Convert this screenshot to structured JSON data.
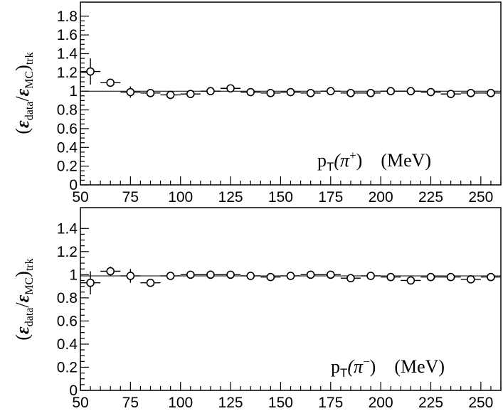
{
  "chart_data": [
    {
      "type": "scatter",
      "name": "top",
      "ylabel_parts": [
        "(",
        "ε",
        "data",
        "/",
        "ε",
        "MC",
        ")",
        "trk"
      ],
      "xlabel_parts": [
        "p",
        "T",
        "(π",
        "+",
        ")",
        "(MeV)"
      ],
      "xlim": [
        50,
        260
      ],
      "ylim": [
        0,
        1.95
      ],
      "xticks": [
        50,
        75,
        100,
        125,
        150,
        175,
        200,
        225,
        250
      ],
      "yticks": [
        0,
        0.2,
        0.4,
        0.6,
        0.8,
        1,
        1.2,
        1.4,
        1.6,
        1.8
      ],
      "ytick_labels": [
        "0",
        "0.2",
        "0.4",
        "0.6",
        "0.8",
        "1",
        "1.2",
        "1.4",
        "1.6",
        "1.8"
      ],
      "reference_line": 1.0,
      "xerr": 5,
      "x": [
        55,
        65,
        75,
        85,
        95,
        105,
        115,
        125,
        135,
        145,
        155,
        165,
        175,
        185,
        195,
        205,
        215,
        225,
        235,
        245,
        255
      ],
      "y": [
        1.21,
        1.09,
        0.99,
        0.98,
        0.96,
        0.97,
        1.0,
        1.03,
        0.99,
        0.98,
        0.99,
        0.98,
        1.0,
        0.98,
        0.98,
        1.0,
        1.0,
        0.99,
        0.97,
        0.98,
        0.98
      ],
      "yerr": [
        0.14,
        0.04,
        0.06,
        0.02,
        0.03,
        0.02,
        0.02,
        0.03,
        0.02,
        0.02,
        0.02,
        0.02,
        0.02,
        0.02,
        0.02,
        0.02,
        0.02,
        0.02,
        0.02,
        0.02,
        0.02
      ]
    },
    {
      "type": "scatter",
      "name": "bottom",
      "ylabel_parts": [
        "(",
        "ε",
        "data",
        "/",
        "ε",
        "MC",
        ")",
        "trk"
      ],
      "xlabel_parts": [
        "p",
        "T",
        "(π",
        "−",
        ")",
        "(MeV)"
      ],
      "xlim": [
        50,
        260
      ],
      "ylim": [
        0,
        1.58
      ],
      "xticks": [
        50,
        75,
        100,
        125,
        150,
        175,
        200,
        225,
        250
      ],
      "yticks": [
        0,
        0.2,
        0.4,
        0.6,
        0.8,
        1,
        1.2,
        1.4
      ],
      "ytick_labels": [
        "0",
        "0.2",
        "0.4",
        "0.6",
        "0.8",
        "1",
        "1.2",
        "1.4"
      ],
      "reference_line": 0.99,
      "xerr": 5,
      "x": [
        55,
        65,
        75,
        85,
        95,
        105,
        115,
        125,
        135,
        145,
        155,
        165,
        175,
        185,
        195,
        205,
        215,
        225,
        235,
        245,
        255
      ],
      "y": [
        0.93,
        1.03,
        0.99,
        0.93,
        0.99,
        1.0,
        1.0,
        1.0,
        0.99,
        0.98,
        0.99,
        1.0,
        1.0,
        0.97,
        0.99,
        0.98,
        0.95,
        0.98,
        0.98,
        0.96,
        0.98
      ],
      "yerr": [
        0.1,
        0.04,
        0.06,
        0.03,
        0.03,
        0.02,
        0.02,
        0.02,
        0.02,
        0.02,
        0.02,
        0.02,
        0.02,
        0.02,
        0.02,
        0.02,
        0.02,
        0.02,
        0.02,
        0.02,
        0.02
      ]
    }
  ]
}
